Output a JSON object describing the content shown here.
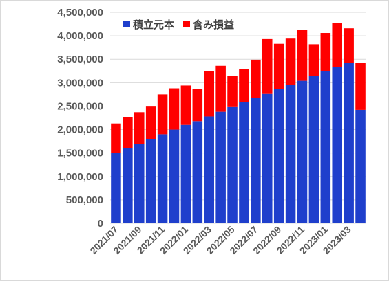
{
  "chart_data": {
    "type": "bar",
    "stacked": true,
    "title": "",
    "xlabel": "",
    "ylabel": "",
    "ylim": [
      0,
      4500000
    ],
    "yticks": [
      0,
      500000,
      1000000,
      1500000,
      2000000,
      2500000,
      3000000,
      3500000,
      4000000,
      4500000
    ],
    "ytick_labels": [
      "0",
      "500,000",
      "1,000,000",
      "1,500,000",
      "2,000,000",
      "2,500,000",
      "3,000,000",
      "3,500,000",
      "4,000,000",
      "4,500,000"
    ],
    "grid": true,
    "legend_position": "top-center",
    "categories": [
      "2021/07",
      "2021/08",
      "2021/09",
      "2021/10",
      "2021/11",
      "2021/12",
      "2022/01",
      "2022/02",
      "2022/03",
      "2022/04",
      "2022/05",
      "2022/06",
      "2022/07",
      "2022/08",
      "2022/09",
      "2022/10",
      "2022/11",
      "2022/12",
      "2023/01",
      "2023/02",
      "2023/03",
      "2023/04"
    ],
    "xtick_labels": [
      "2021/07",
      "",
      "2021/09",
      "",
      "2021/11",
      "",
      "2022/01",
      "",
      "2022/03",
      "",
      "2022/05",
      "",
      "2022/07",
      "",
      "2022/09",
      "",
      "2022/11",
      "",
      "2023/01",
      "",
      "2023/03",
      ""
    ],
    "series": [
      {
        "name": "積立元本",
        "color": "#1f3fcc",
        "values": [
          1500000,
          1600000,
          1700000,
          1800000,
          1900000,
          2000000,
          2100000,
          2180000,
          2280000,
          2380000,
          2480000,
          2580000,
          2670000,
          2760000,
          2860000,
          2950000,
          3040000,
          3140000,
          3240000,
          3330000,
          3430000,
          2420000
        ]
      },
      {
        "name": "含み損益",
        "color": "#ff0000",
        "values": [
          630000,
          660000,
          670000,
          690000,
          850000,
          880000,
          840000,
          690000,
          970000,
          980000,
          670000,
          710000,
          820000,
          1170000,
          970000,
          990000,
          1080000,
          680000,
          820000,
          940000,
          730000,
          1010000
        ]
      }
    ]
  }
}
